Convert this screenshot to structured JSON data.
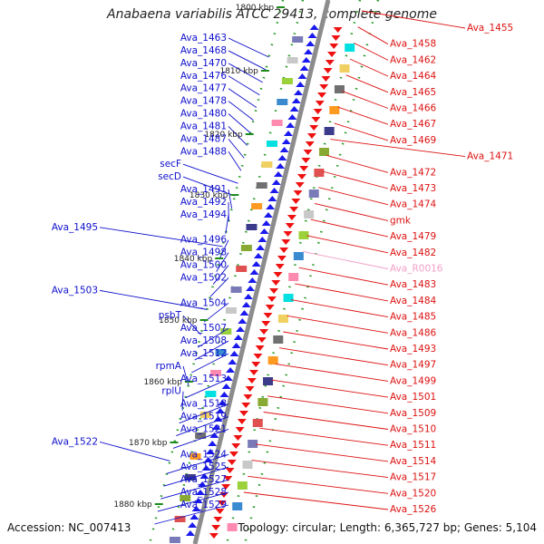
{
  "title": "Anabaena variabilis ATCC 29413, complete genome",
  "accession": "Accession: NC_007413",
  "topology": "Topology: circular; Length: 6,365,727 bp; Genes: 5,104",
  "colors": {
    "left_label": "#1010cc",
    "right_label": "#dd1111",
    "rna_label": "#f0a0c8",
    "backbone": "#8c8c8c",
    "tick": "#1c8c1c",
    "forward_gene": "#1a1aee",
    "reverse_gene": "#ee1111"
  },
  "scale_ticks": [
    "1800 kbp",
    "1810 kbp",
    "1820 kbp",
    "1830 kbp",
    "1840 kbp",
    "1850 kbp",
    "1860 kbp",
    "1870 kbp",
    "1880 kbp"
  ],
  "left_labels": [
    "Ava_1463",
    "Ava_1468",
    "Ava_1470",
    "Ava_1476",
    "Ava_1477",
    "Ava_1478",
    "Ava_1480",
    "Ava_1481",
    "Ava_1487",
    "Ava_1488",
    "secF",
    "secD",
    "Ava_1491",
    "Ava_1492",
    "Ava_1494",
    "Ava_1495",
    "Ava_1496",
    "Ava_1498",
    "Ava_1500",
    "Ava_1502",
    "Ava_1503",
    "Ava_1504",
    "psbT",
    "Ava_1507",
    "Ava_1508",
    "Ava_1512",
    "rpmA",
    "Ava_1513",
    "rplU",
    "Ava_1518",
    "Ava_1519",
    "Ava_1521",
    "Ava_1522",
    "Ava_1524",
    "Ava_1525",
    "Ava_1527",
    "Ava_1528",
    "Ava_1529"
  ],
  "right_labels": [
    "Ava_1455",
    "Ava_1458",
    "Ava_1462",
    "Ava_1464",
    "Ava_1465",
    "Ava_1466",
    "Ava_1467",
    "Ava_1469",
    "Ava_1471",
    "Ava_1472",
    "Ava_1473",
    "Ava_1474",
    "gmk",
    "Ava_1479",
    "Ava_1482",
    "Ava_R0016",
    "Ava_1483",
    "Ava_1484",
    "Ava_1485",
    "Ava_1486",
    "Ava_1493",
    "Ava_1497",
    "Ava_1499",
    "Ava_1501",
    "Ava_1509",
    "Ava_1510",
    "Ava_1511",
    "Ava_1514",
    "Ava_1517",
    "Ava_1520",
    "Ava_1526"
  ],
  "rna_labels": [
    "Ava_R0016"
  ]
}
